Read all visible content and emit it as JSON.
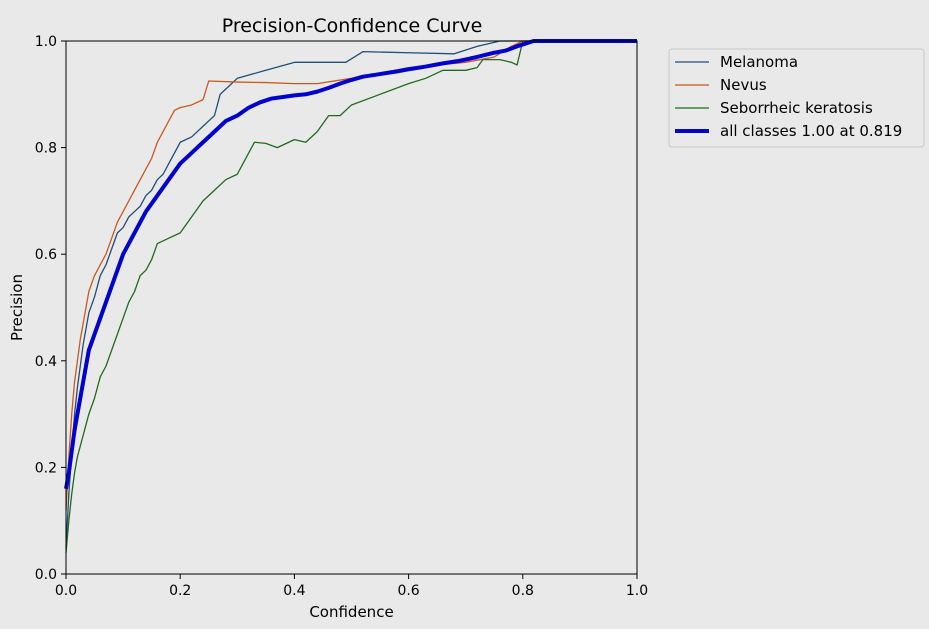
{
  "chart_data": {
    "type": "line",
    "title": "Precision-Confidence Curve",
    "xlabel": "Confidence",
    "ylabel": "Precision",
    "xlim": [
      0,
      1
    ],
    "ylim": [
      0,
      1
    ],
    "xticks": [
      "0.0",
      "0.2",
      "0.4",
      "0.6",
      "0.8",
      "1.0"
    ],
    "yticks": [
      "0.0",
      "0.2",
      "0.4",
      "0.6",
      "0.8",
      "1.0"
    ],
    "grid": false,
    "legend_position": "outside-top-right",
    "series": [
      {
        "name": "Melanoma",
        "color": "#1f4e79",
        "width": 1.3,
        "points": [
          [
            0,
            0.05
          ],
          [
            0.005,
            0.15
          ],
          [
            0.01,
            0.23
          ],
          [
            0.015,
            0.3
          ],
          [
            0.02,
            0.35
          ],
          [
            0.025,
            0.39
          ],
          [
            0.03,
            0.43
          ],
          [
            0.035,
            0.46
          ],
          [
            0.04,
            0.49
          ],
          [
            0.05,
            0.52
          ],
          [
            0.06,
            0.56
          ],
          [
            0.07,
            0.58
          ],
          [
            0.08,
            0.61
          ],
          [
            0.09,
            0.64
          ],
          [
            0.1,
            0.65
          ],
          [
            0.11,
            0.67
          ],
          [
            0.12,
            0.68
          ],
          [
            0.13,
            0.69
          ],
          [
            0.14,
            0.71
          ],
          [
            0.15,
            0.72
          ],
          [
            0.16,
            0.74
          ],
          [
            0.17,
            0.75
          ],
          [
            0.18,
            0.77
          ],
          [
            0.2,
            0.81
          ],
          [
            0.22,
            0.82
          ],
          [
            0.24,
            0.84
          ],
          [
            0.25,
            0.85
          ],
          [
            0.26,
            0.86
          ],
          [
            0.27,
            0.9
          ],
          [
            0.28,
            0.91
          ],
          [
            0.3,
            0.93
          ],
          [
            0.35,
            0.945
          ],
          [
            0.4,
            0.96
          ],
          [
            0.45,
            0.96
          ],
          [
            0.49,
            0.96
          ],
          [
            0.52,
            0.98
          ],
          [
            0.6,
            0.978
          ],
          [
            0.68,
            0.976
          ],
          [
            0.72,
            0.99
          ],
          [
            0.76,
            1.0
          ],
          [
            1.0,
            1.0
          ]
        ]
      },
      {
        "name": "Nevus",
        "color": "#c85a1e",
        "width": 1.3,
        "points": [
          [
            0,
            0.12
          ],
          [
            0.005,
            0.22
          ],
          [
            0.01,
            0.3
          ],
          [
            0.015,
            0.36
          ],
          [
            0.02,
            0.4
          ],
          [
            0.025,
            0.44
          ],
          [
            0.03,
            0.47
          ],
          [
            0.035,
            0.5
          ],
          [
            0.04,
            0.53
          ],
          [
            0.05,
            0.56
          ],
          [
            0.06,
            0.58
          ],
          [
            0.07,
            0.6
          ],
          [
            0.08,
            0.63
          ],
          [
            0.09,
            0.66
          ],
          [
            0.1,
            0.68
          ],
          [
            0.11,
            0.7
          ],
          [
            0.12,
            0.72
          ],
          [
            0.13,
            0.74
          ],
          [
            0.14,
            0.76
          ],
          [
            0.15,
            0.78
          ],
          [
            0.16,
            0.81
          ],
          [
            0.17,
            0.83
          ],
          [
            0.18,
            0.85
          ],
          [
            0.19,
            0.87
          ],
          [
            0.2,
            0.875
          ],
          [
            0.22,
            0.88
          ],
          [
            0.24,
            0.89
          ],
          [
            0.25,
            0.925
          ],
          [
            0.3,
            0.923
          ],
          [
            0.35,
            0.922
          ],
          [
            0.4,
            0.92
          ],
          [
            0.44,
            0.92
          ],
          [
            0.5,
            0.93
          ],
          [
            0.6,
            0.95
          ],
          [
            0.7,
            0.96
          ],
          [
            0.75,
            0.97
          ],
          [
            0.78,
            0.99
          ],
          [
            0.8,
            1.0
          ],
          [
            1.0,
            1.0
          ]
        ]
      },
      {
        "name": "Seborrheic keratosis",
        "color": "#1f6b1f",
        "width": 1.3,
        "points": [
          [
            0,
            0.04
          ],
          [
            0.005,
            0.1
          ],
          [
            0.01,
            0.15
          ],
          [
            0.015,
            0.19
          ],
          [
            0.02,
            0.22
          ],
          [
            0.03,
            0.26
          ],
          [
            0.04,
            0.3
          ],
          [
            0.05,
            0.33
          ],
          [
            0.06,
            0.37
          ],
          [
            0.07,
            0.39
          ],
          [
            0.08,
            0.42
          ],
          [
            0.09,
            0.45
          ],
          [
            0.1,
            0.48
          ],
          [
            0.11,
            0.51
          ],
          [
            0.12,
            0.53
          ],
          [
            0.13,
            0.56
          ],
          [
            0.14,
            0.57
          ],
          [
            0.15,
            0.59
          ],
          [
            0.16,
            0.62
          ],
          [
            0.18,
            0.63
          ],
          [
            0.2,
            0.64
          ],
          [
            0.22,
            0.67
          ],
          [
            0.24,
            0.7
          ],
          [
            0.26,
            0.72
          ],
          [
            0.28,
            0.74
          ],
          [
            0.3,
            0.75
          ],
          [
            0.31,
            0.77
          ],
          [
            0.33,
            0.81
          ],
          [
            0.35,
            0.808
          ],
          [
            0.37,
            0.8
          ],
          [
            0.4,
            0.815
          ],
          [
            0.42,
            0.81
          ],
          [
            0.44,
            0.83
          ],
          [
            0.46,
            0.86
          ],
          [
            0.48,
            0.86
          ],
          [
            0.5,
            0.88
          ],
          [
            0.55,
            0.9
          ],
          [
            0.6,
            0.92
          ],
          [
            0.63,
            0.93
          ],
          [
            0.66,
            0.945
          ],
          [
            0.7,
            0.945
          ],
          [
            0.72,
            0.95
          ],
          [
            0.73,
            0.965
          ],
          [
            0.76,
            0.965
          ],
          [
            0.78,
            0.96
          ],
          [
            0.79,
            0.955
          ],
          [
            0.8,
            1.0
          ],
          [
            1.0,
            1.0
          ]
        ]
      },
      {
        "name": "all classes 1.00 at 0.819",
        "color": "#0000cc",
        "width": 4,
        "points": [
          [
            0,
            0.16
          ],
          [
            0.005,
            0.19
          ],
          [
            0.01,
            0.23
          ],
          [
            0.015,
            0.27
          ],
          [
            0.02,
            0.3
          ],
          [
            0.025,
            0.33
          ],
          [
            0.03,
            0.36
          ],
          [
            0.035,
            0.39
          ],
          [
            0.04,
            0.42
          ],
          [
            0.05,
            0.45
          ],
          [
            0.06,
            0.48
          ],
          [
            0.07,
            0.51
          ],
          [
            0.08,
            0.54
          ],
          [
            0.09,
            0.57
          ],
          [
            0.1,
            0.6
          ],
          [
            0.11,
            0.62
          ],
          [
            0.12,
            0.64
          ],
          [
            0.14,
            0.68
          ],
          [
            0.16,
            0.71
          ],
          [
            0.18,
            0.74
          ],
          [
            0.2,
            0.77
          ],
          [
            0.22,
            0.79
          ],
          [
            0.24,
            0.81
          ],
          [
            0.26,
            0.83
          ],
          [
            0.28,
            0.85
          ],
          [
            0.3,
            0.86
          ],
          [
            0.32,
            0.875
          ],
          [
            0.34,
            0.885
          ],
          [
            0.36,
            0.892
          ],
          [
            0.38,
            0.895
          ],
          [
            0.4,
            0.898
          ],
          [
            0.42,
            0.9
          ],
          [
            0.44,
            0.905
          ],
          [
            0.46,
            0.912
          ],
          [
            0.48,
            0.92
          ],
          [
            0.5,
            0.927
          ],
          [
            0.52,
            0.933
          ],
          [
            0.55,
            0.938
          ],
          [
            0.58,
            0.943
          ],
          [
            0.6,
            0.947
          ],
          [
            0.63,
            0.952
          ],
          [
            0.66,
            0.958
          ],
          [
            0.69,
            0.963
          ],
          [
            0.72,
            0.97
          ],
          [
            0.75,
            0.978
          ],
          [
            0.77,
            0.982
          ],
          [
            0.79,
            0.99
          ],
          [
            0.819,
            1.0
          ],
          [
            1.0,
            1.0
          ]
        ]
      }
    ]
  }
}
